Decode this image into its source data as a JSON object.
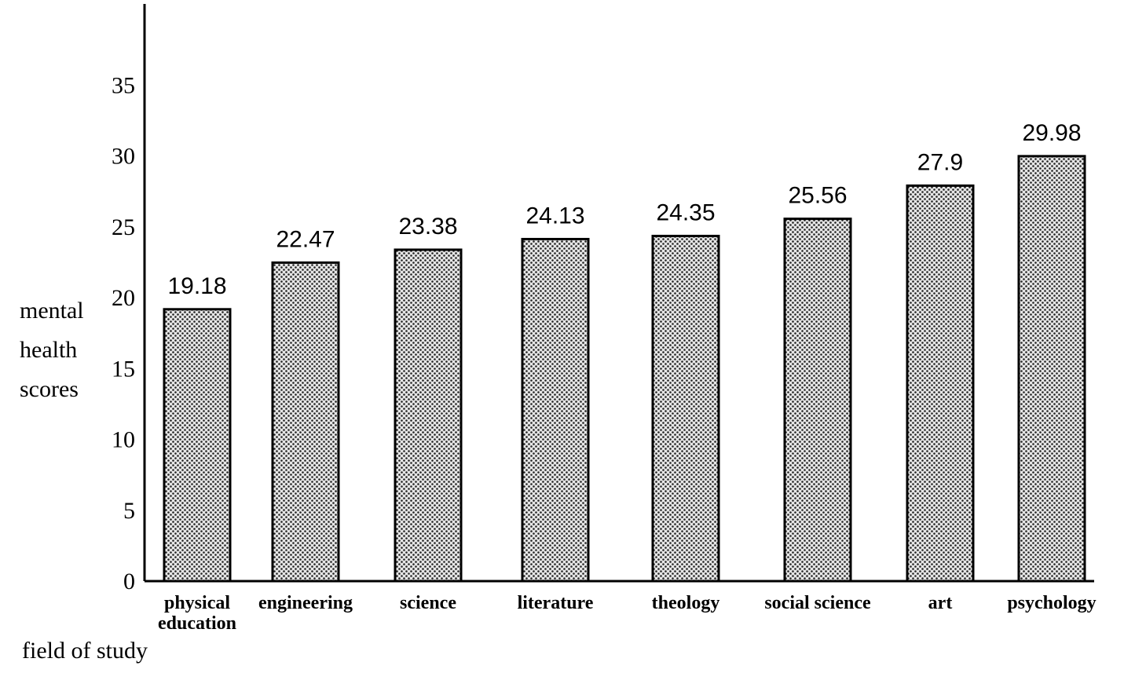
{
  "chart_data": {
    "type": "bar",
    "categories": [
      [
        "physical",
        "education"
      ],
      [
        "engineering"
      ],
      [
        "science"
      ],
      [
        "literature"
      ],
      [
        "theology"
      ],
      [
        "social science"
      ],
      [
        "art"
      ],
      [
        "psychology"
      ]
    ],
    "values": [
      19.18,
      22.47,
      23.38,
      24.13,
      24.35,
      25.56,
      27.9,
      29.98
    ],
    "data_labels": [
      "19.18",
      "22.47",
      "23.38",
      "24.13",
      "24.35",
      "25.56",
      "27.9",
      "29.98"
    ],
    "yticks": [
      0,
      5,
      10,
      15,
      20,
      25,
      30,
      35
    ],
    "ylim": [
      0,
      40
    ],
    "ylabel": [
      "mental",
      "health",
      "scores"
    ],
    "xlabel": "field of study",
    "grid": false,
    "bar_fill": "#9a9a9a",
    "bar_stroke": "#000000"
  }
}
